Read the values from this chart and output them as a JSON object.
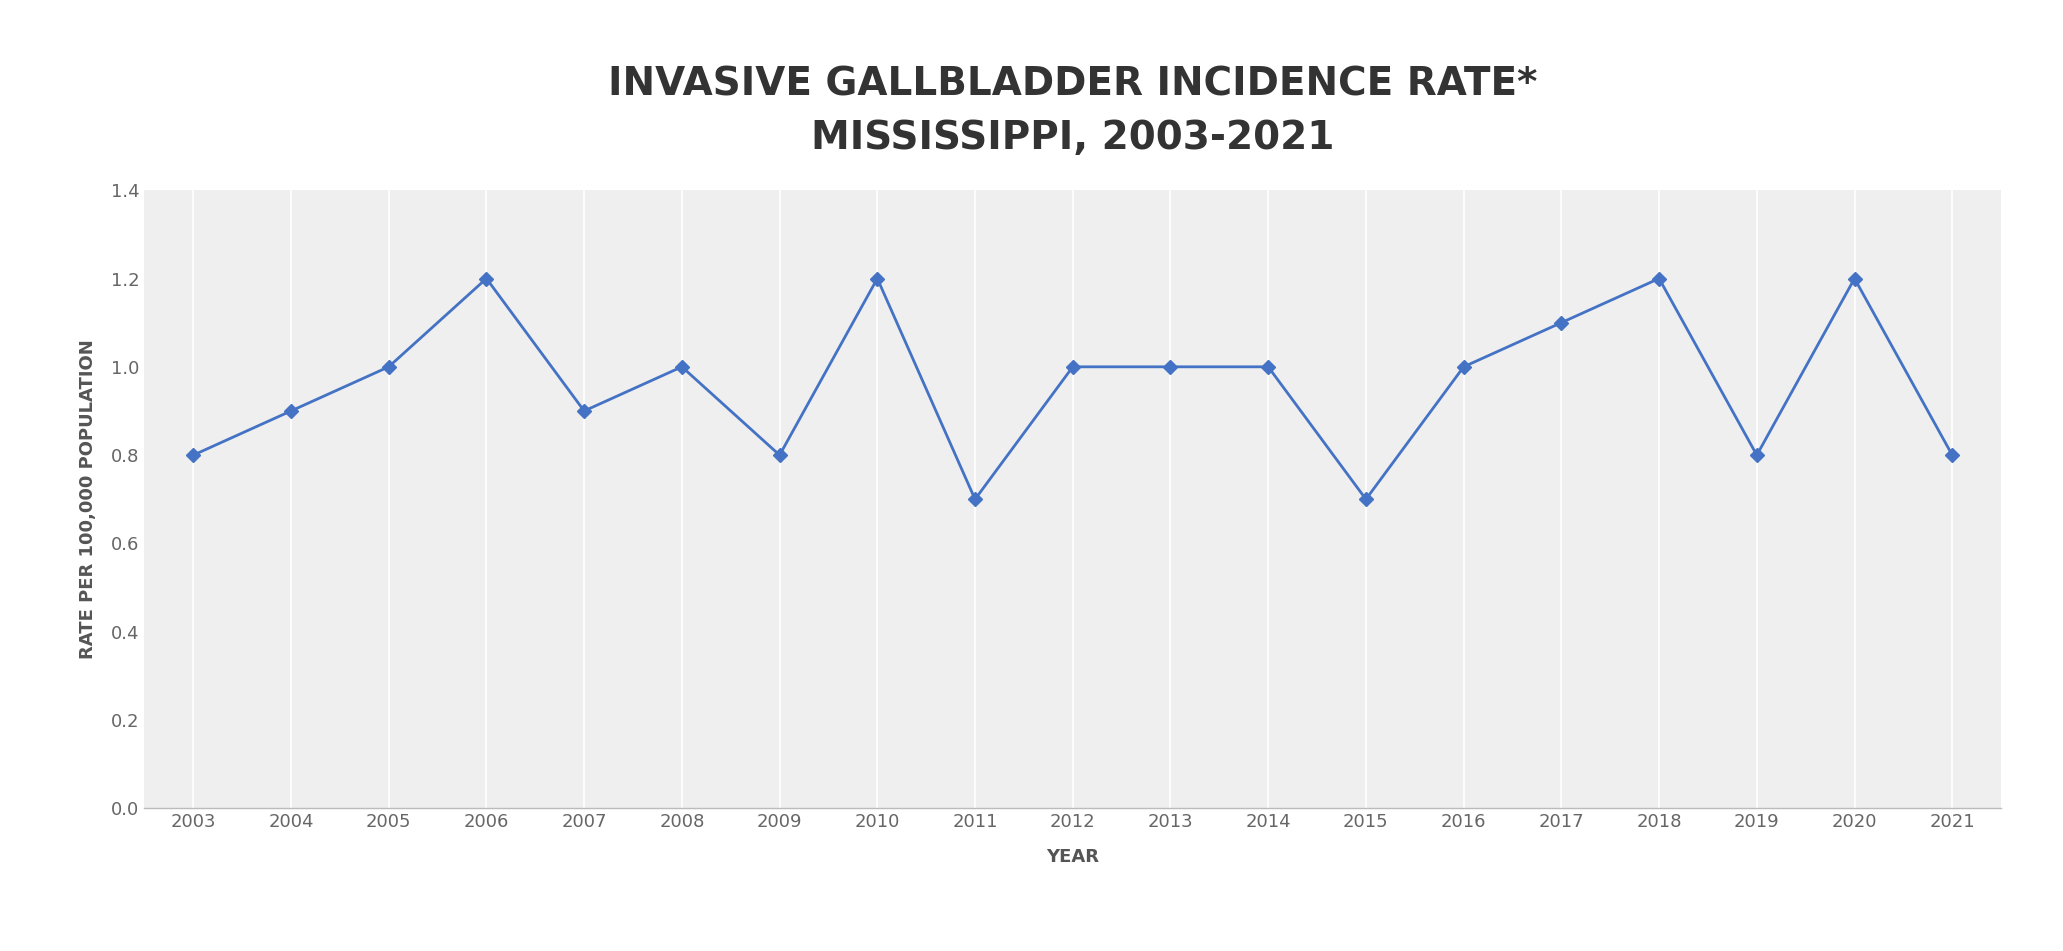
{
  "title_line1": "INVASIVE GALLBLADDER INCIDENCE RATE*",
  "title_line2": "MISSISSIPPI, 2003-2021",
  "xlabel": "YEAR",
  "ylabel": "RATE PER 100,000 POPULATION",
  "years": [
    2003,
    2004,
    2005,
    2006,
    2007,
    2008,
    2009,
    2010,
    2011,
    2012,
    2013,
    2014,
    2015,
    2016,
    2017,
    2018,
    2019,
    2020,
    2021
  ],
  "values": [
    0.8,
    0.9,
    1.0,
    1.2,
    0.9,
    1.0,
    0.8,
    1.2,
    0.7,
    1.0,
    1.0,
    1.0,
    0.7,
    1.0,
    1.1,
    1.2,
    0.8,
    1.2,
    0.8
  ],
  "line_color": "#4472C4",
  "marker_color": "#4472C4",
  "background_color": "#FFFFFF",
  "plot_bg_color": "#EFEFEF",
  "grid_color": "#FFFFFF",
  "spine_color": "#BBBBBB",
  "ylim": [
    0.0,
    1.4
  ],
  "yticks": [
    0.0,
    0.2,
    0.4,
    0.6,
    0.8,
    1.0,
    1.2,
    1.4
  ],
  "title_fontsize": 28,
  "axis_label_fontsize": 13,
  "tick_fontsize": 13,
  "line_width": 2.0,
  "marker_size": 7,
  "marker_style": "D",
  "title_color": "#333333",
  "tick_color": "#666666",
  "label_color": "#555555"
}
